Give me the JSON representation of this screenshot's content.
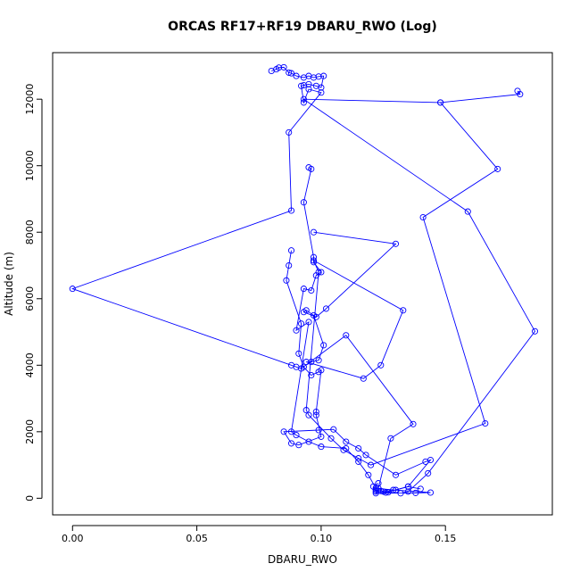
{
  "chart_data": {
    "type": "line",
    "title": "ORCAS RF17+RF19 DBARU_RWO (Log)",
    "xlabel": "DBARU_RWO",
    "ylabel": "Altitude (m)",
    "xlim": [
      -0.008,
      0.193
    ],
    "ylim": [
      -500,
      13400
    ],
    "x_ticks": [
      0.0,
      0.05,
      0.1,
      0.15
    ],
    "x_tick_labels": [
      "0.00",
      "0.05",
      "0.10",
      "0.15"
    ],
    "y_ticks": [
      0,
      2000,
      4000,
      6000,
      8000,
      10000,
      12000
    ],
    "y_tick_labels": [
      "0",
      "2000",
      "4000",
      "6000",
      "8000",
      "10000",
      "12000"
    ],
    "grid": false,
    "series_color": "#0000ff",
    "series": [
      {
        "points": [
          [
            0.08,
            12850
          ],
          [
            0.082,
            12900
          ],
          [
            0.083,
            12950
          ],
          [
            0.085,
            12960
          ],
          [
            0.087,
            12800
          ],
          [
            0.088,
            12780
          ],
          [
            0.09,
            12700
          ],
          [
            0.093,
            12650
          ],
          [
            0.095,
            12700
          ],
          [
            0.097,
            12650
          ],
          [
            0.099,
            12680
          ],
          [
            0.101,
            12700
          ],
          [
            0.1,
            12350
          ],
          [
            0.098,
            12400
          ],
          [
            0.095,
            12450
          ],
          [
            0.093,
            12420
          ],
          [
            0.092,
            12400
          ],
          [
            0.093,
            11900
          ],
          [
            0.095,
            12300
          ],
          [
            0.1,
            12200
          ],
          [
            0.087,
            11000
          ],
          [
            0.088,
            8650
          ],
          [
            0.0,
            6300
          ],
          [
            0.088,
            4000
          ],
          [
            0.09,
            3950
          ],
          [
            0.092,
            3900
          ],
          [
            0.11,
            4900
          ],
          [
            0.137,
            2230
          ],
          [
            0.128,
            1800
          ],
          [
            0.123,
            300
          ],
          [
            0.125,
            200
          ],
          [
            0.13,
            250
          ],
          [
            0.135,
            350
          ],
          [
            0.14,
            280
          ]
        ]
      },
      {
        "points": [
          [
            0.179,
            12250
          ],
          [
            0.18,
            12150
          ],
          [
            0.148,
            11900
          ],
          [
            0.093,
            12000
          ],
          [
            0.159,
            8620
          ],
          [
            0.186,
            5020
          ],
          [
            0.143,
            750
          ],
          [
            0.135,
            200
          ],
          [
            0.132,
            150
          ],
          [
            0.127,
            180
          ],
          [
            0.124,
            220
          ],
          [
            0.122,
            250
          ],
          [
            0.122,
            150
          ],
          [
            0.138,
            160
          ],
          [
            0.144,
            170
          ],
          [
            0.129,
            250
          ],
          [
            0.122,
            300
          ],
          [
            0.119,
            700
          ],
          [
            0.115,
            1100
          ],
          [
            0.11,
            1500
          ],
          [
            0.1,
            1550
          ],
          [
            0.095,
            1700
          ],
          [
            0.09,
            1900
          ],
          [
            0.088,
            2000
          ],
          [
            0.095,
            5300
          ],
          [
            0.09,
            5050
          ],
          [
            0.093,
            6300
          ],
          [
            0.096,
            6250
          ],
          [
            0.098,
            6700
          ],
          [
            0.1,
            6800
          ],
          [
            0.097,
            7100
          ],
          [
            0.097,
            7250
          ],
          [
            0.093,
            8900
          ],
          [
            0.096,
            9900
          ],
          [
            0.095,
            9950
          ]
        ]
      },
      {
        "points": [
          [
            0.087,
            7000
          ],
          [
            0.088,
            7450
          ],
          [
            0.086,
            6550
          ],
          [
            0.092,
            5250
          ],
          [
            0.091,
            4350
          ],
          [
            0.093,
            3950
          ],
          [
            0.096,
            3700
          ],
          [
            0.099,
            3800
          ],
          [
            0.1,
            3850
          ],
          [
            0.098,
            2600
          ],
          [
            0.098,
            2500
          ],
          [
            0.1,
            1850
          ],
          [
            0.091,
            1600
          ],
          [
            0.088,
            1650
          ],
          [
            0.085,
            2000
          ],
          [
            0.099,
            2050
          ],
          [
            0.105,
            2070
          ],
          [
            0.11,
            1700
          ],
          [
            0.115,
            1500
          ],
          [
            0.118,
            1300
          ],
          [
            0.13,
            700
          ],
          [
            0.142,
            1100
          ],
          [
            0.144,
            1150
          ],
          [
            0.135,
            350
          ],
          [
            0.126,
            170
          ],
          [
            0.122,
            200
          ],
          [
            0.121,
            350
          ],
          [
            0.123,
            450
          ]
        ]
      },
      {
        "points": [
          [
            0.097,
            8000
          ],
          [
            0.13,
            7650
          ],
          [
            0.102,
            5700
          ],
          [
            0.098,
            5450
          ],
          [
            0.093,
            5600
          ],
          [
            0.094,
            5650
          ],
          [
            0.097,
            5500
          ],
          [
            0.101,
            4600
          ],
          [
            0.099,
            4150
          ],
          [
            0.096,
            4100
          ],
          [
            0.094,
            4100
          ],
          [
            0.117,
            3600
          ],
          [
            0.124,
            4000
          ],
          [
            0.133,
            5650
          ],
          [
            0.097,
            7150
          ],
          [
            0.099,
            6800
          ],
          [
            0.094,
            2650
          ],
          [
            0.095,
            2500
          ],
          [
            0.104,
            1800
          ],
          [
            0.109,
            1450
          ],
          [
            0.115,
            1200
          ],
          [
            0.12,
            1000
          ],
          [
            0.166,
            2250
          ],
          [
            0.141,
            8450
          ],
          [
            0.171,
            9900
          ],
          [
            0.148,
            11900
          ]
        ]
      }
    ]
  }
}
